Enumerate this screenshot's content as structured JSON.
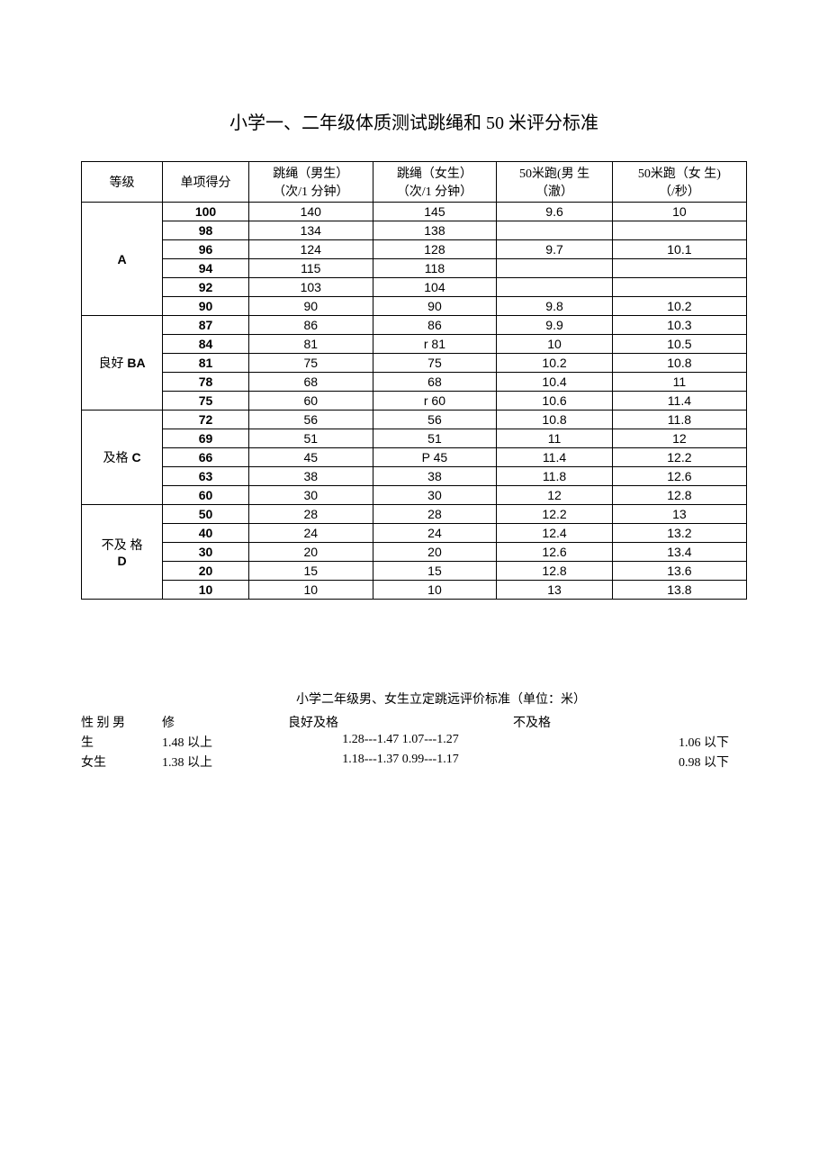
{
  "title": "小学一、二年级体质测试跳绳和 50 米评分标准",
  "headers": {
    "grade": "等级",
    "score": "单项得分",
    "rope_m": "跳绳（男生）",
    "rope_m_unit": "（次/1 分钟）",
    "rope_f": "跳绳（女生）",
    "rope_f_unit": "（次/1 分钟）",
    "run_m": "50米跑(男  生",
    "run_m_unit": "（澈）",
    "run_f": "50米跑（女  生)",
    "run_f_unit": "（/秒）"
  },
  "groups": [
    {
      "label": "A",
      "rows": [
        {
          "score": "100",
          "rm": "140",
          "rf": "145",
          "tm": "9.6",
          "tf": "10"
        },
        {
          "score": "98",
          "rm": "134",
          "rf": "138",
          "tm": "",
          "tf": ""
        },
        {
          "score": "96",
          "rm": "124",
          "rf": "128",
          "tm": "9.7",
          "tf": "10.1"
        },
        {
          "score": "94",
          "rm": "115",
          "rf": "118",
          "tm": "",
          "tf": ""
        },
        {
          "score": "92",
          "rm": "103",
          "rf": "104",
          "tm": "",
          "tf": ""
        },
        {
          "score": "90",
          "rm": "90",
          "rf": "90",
          "tm": "9.8",
          "tf": "10.2"
        }
      ]
    },
    {
      "label": "良好 BA",
      "rows": [
        {
          "score": "87",
          "rm": "86",
          "rf": "86",
          "tm": "9.9",
          "tf": "10.3"
        },
        {
          "score": "84",
          "rm": "81",
          "rf": "r 81",
          "rf_left": true,
          "tm": "10",
          "tf": "10.5"
        },
        {
          "score": "81",
          "rm": "75",
          "rf": "75",
          "tm": "10.2",
          "tf": "10.8"
        },
        {
          "score": "78",
          "rm": "68",
          "rf": "68",
          "tm": "10.4",
          "tf": "11"
        },
        {
          "score": "75",
          "rm": "60",
          "rf": "r 60",
          "rf_left": true,
          "tm": "10.6",
          "tf": "11.4"
        }
      ]
    },
    {
      "label": "及格 C",
      "rows": [
        {
          "score": "72",
          "rm": "56",
          "rf": "56",
          "tm": "10.8",
          "tf": "11.8"
        },
        {
          "score": "69",
          "rm": "51",
          "rf": "51",
          "tm": "11",
          "tf": "12"
        },
        {
          "score": "66",
          "rm": "45",
          "rf": "P 45",
          "rf_left": true,
          "tm": "11.4",
          "tf": "12.2"
        },
        {
          "score": "63",
          "rm": "38",
          "rf": "38",
          "tm": "11.8",
          "tf": "12.6"
        },
        {
          "score": "60",
          "rm": "30",
          "rf": "30",
          "tm": "12",
          "tf": "12.8"
        }
      ]
    },
    {
      "label": "不及 格\nD",
      "rows": [
        {
          "score": "50",
          "rm": "28",
          "rf": "28",
          "tm": "12.2",
          "tf": "13"
        },
        {
          "score": "40",
          "rm": "24",
          "rf": "24",
          "tm": "12.4",
          "tf": "13.2"
        },
        {
          "score": "30",
          "rm": "20",
          "rf": "20",
          "tm": "12.6",
          "tf": "13.4"
        },
        {
          "score": "20",
          "rm": "15",
          "rf": "15",
          "tm": "12.8",
          "tf": "13.6"
        },
        {
          "score": "10",
          "rm": "10",
          "rf": "10",
          "tm": "13",
          "tf": "13.8"
        }
      ]
    }
  ],
  "sub": {
    "title": "小学二年级男、女生立定跳远评价标准（单位：米）",
    "header": {
      "c0": "性 别   男",
      "c1": "修",
      "c2": "良好及格",
      "c3": "不及格",
      "c4": ""
    },
    "rows": [
      {
        "c0": "生",
        "c1": "1.48 以上",
        "c2": "1.28---1.47 1.07---1.27",
        "c3": "",
        "c4": "1.06   以下"
      },
      {
        "c0": "女生",
        "c1": "1.38 以上",
        "c2": "1.18---1.37 0.99---1.17",
        "c3": "",
        "c4": "0.98 以下"
      }
    ]
  }
}
